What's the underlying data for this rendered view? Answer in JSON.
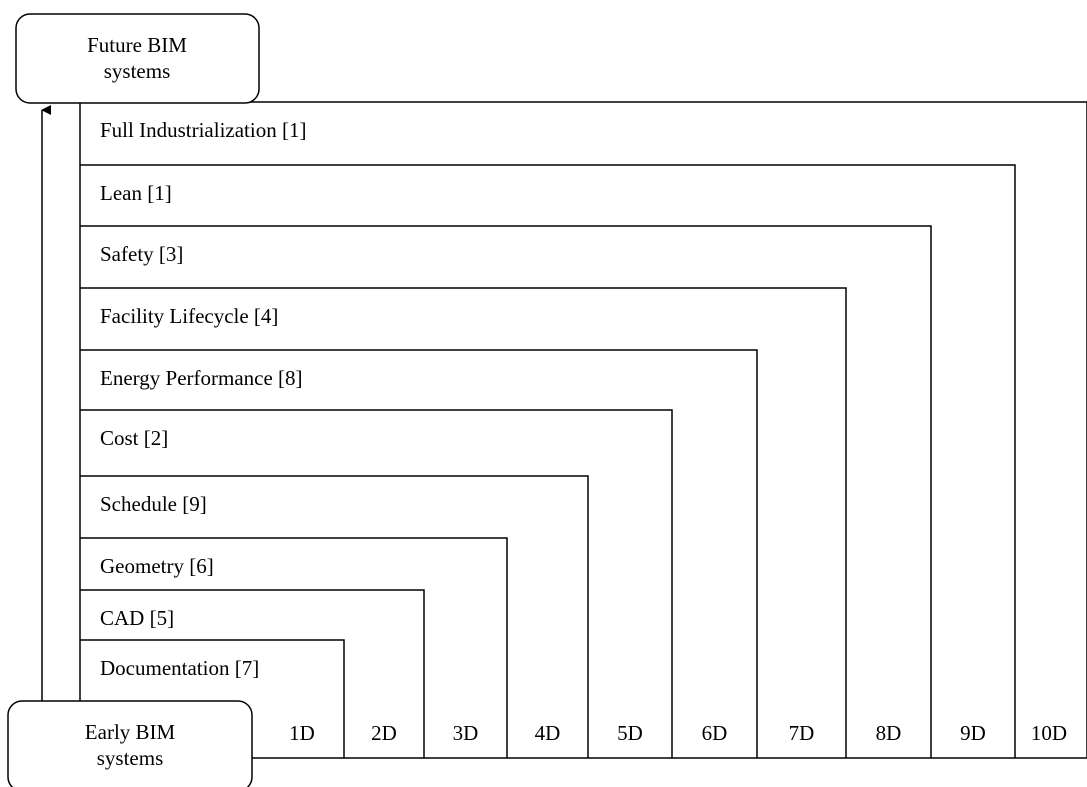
{
  "diagram": {
    "top_node": {
      "line1": "Future BIM",
      "line2": "systems"
    },
    "bottom_node": {
      "line1": "Early BIM",
      "line2": "systems"
    },
    "layers": [
      {
        "label": "Documentation [7]",
        "dimension": "1D"
      },
      {
        "label": "CAD [5]",
        "dimension": "2D"
      },
      {
        "label": "Geometry [6]",
        "dimension": "3D"
      },
      {
        "label": "Schedule [9]",
        "dimension": "4D"
      },
      {
        "label": "Cost [2]",
        "dimension": "5D"
      },
      {
        "label": "Energy Performance [8]",
        "dimension": "6D"
      },
      {
        "label": "Facility Lifecycle [4]",
        "dimension": "7D"
      },
      {
        "label": "Safety [3]",
        "dimension": "8D"
      },
      {
        "label": "Lean [1]",
        "dimension": "9D"
      },
      {
        "label": "Full Industrialization [1]",
        "dimension": "10D"
      }
    ]
  }
}
